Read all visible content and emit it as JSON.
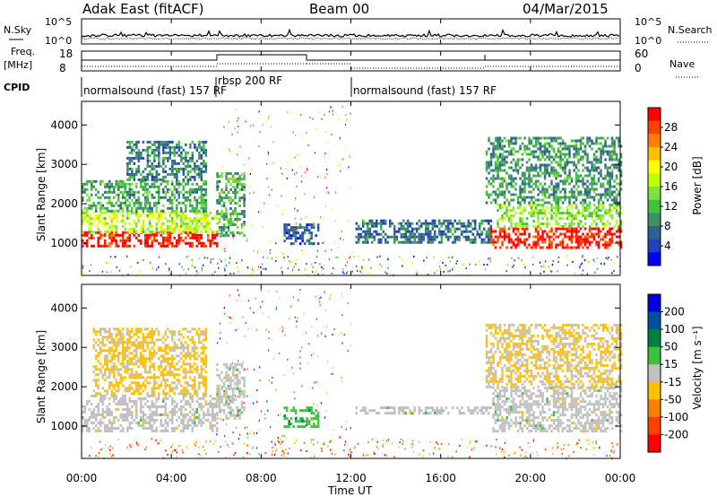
{
  "header": {
    "station": "Adak East (fitACF)",
    "beam": "Beam 00",
    "date": "04/Mar/2015"
  },
  "panel_labels": {
    "nsky": "N.Sky",
    "freq": "Freq.",
    "freq_unit": "[MHz]",
    "cpid": "CPID",
    "nsearch": "N.Search",
    "nave": "Nave",
    "nsky_ticks": [
      "10^5",
      "10^0"
    ],
    "nsearch_ticks": [
      "10^5",
      "10^0"
    ],
    "freq_ticks": [
      "18",
      "8"
    ],
    "nave_ticks": [
      "60",
      "0"
    ]
  },
  "cpid_segments": [
    {
      "label": "normalsound (fast) 157 RF",
      "start_h": 0,
      "end_h": 6
    },
    {
      "label": "rbsp 200 RF",
      "start_h": 6,
      "end_h": 12
    },
    {
      "label": "normalsound (fast) 157 RF",
      "start_h": 12,
      "end_h": 24
    }
  ],
  "power_colorbar": {
    "label": "Power [dB]",
    "ticks": [
      "28",
      "24",
      "20",
      "16",
      "12",
      "8",
      "4"
    ],
    "colors": [
      "#ff0000",
      "#ff4000",
      "#ff7f00",
      "#ffbf00",
      "#ffff00",
      "#bfff00",
      "#80e040",
      "#40c040",
      "#409060",
      "#306090",
      "#2040c0",
      "#0000ff"
    ]
  },
  "velocity_colorbar": {
    "label": "Velocity [m s⁻¹]",
    "ticks": [
      "200",
      "100",
      "50",
      "15",
      "-15",
      "-50",
      "-100",
      "-200"
    ],
    "colors": [
      "#0000dd",
      "#0050a0",
      "#008040",
      "#40c040",
      "#c0c0c0",
      "#ffc000",
      "#ff8000",
      "#ff4000",
      "#ff0000"
    ]
  },
  "axes": {
    "y_label": "Slant Range [km]",
    "y_ticks": [
      "4000",
      "3000",
      "2000",
      "1000"
    ],
    "x_label": "Time UT",
    "x_ticks": [
      "00:00",
      "04:00",
      "08:00",
      "12:00",
      "16:00",
      "20:00",
      "00:00"
    ]
  },
  "chart_data": [
    {
      "type": "heatmap",
      "name": "power",
      "x_range_hours": [
        0,
        24
      ],
      "y_range_km": [
        180,
        4600
      ],
      "value_unit": "dB",
      "color_range": [
        0,
        30
      ],
      "regions": [
        {
          "t0": 0.0,
          "t1": 6.0,
          "r0": 900,
          "r1": 1300,
          "level": 28
        },
        {
          "t0": 0.0,
          "t1": 6.0,
          "r0": 1300,
          "r1": 1800,
          "level": 16
        },
        {
          "t0": 0.0,
          "t1": 5.5,
          "r0": 1800,
          "r1": 2600,
          "level": 10
        },
        {
          "t0": 2.0,
          "t1": 5.5,
          "r0": 2600,
          "r1": 3600,
          "level": 8
        },
        {
          "t0": 6.0,
          "t1": 7.2,
          "r0": 1200,
          "r1": 2800,
          "level": 10
        },
        {
          "t0": 9.0,
          "t1": 10.5,
          "r0": 1000,
          "r1": 1500,
          "level": 6
        },
        {
          "t0": 12.2,
          "t1": 18.2,
          "r0": 1000,
          "r1": 1600,
          "level": 7
        },
        {
          "t0": 18.2,
          "t1": 24.0,
          "r0": 900,
          "r1": 1400,
          "level": 28
        },
        {
          "t0": 18.5,
          "t1": 24.0,
          "r0": 1400,
          "r1": 2000,
          "level": 14
        },
        {
          "t0": 18.0,
          "t1": 24.0,
          "r0": 2000,
          "r1": 3700,
          "level": 9
        }
      ]
    },
    {
      "type": "heatmap",
      "name": "velocity",
      "x_range_hours": [
        0,
        24
      ],
      "y_range_km": [
        180,
        4600
      ],
      "value_unit": "m s-1",
      "color_range": [
        -250,
        250
      ],
      "regions": [
        {
          "t0": 0.0,
          "t1": 6.0,
          "r0": 900,
          "r1": 1800,
          "level": 0
        },
        {
          "t0": 0.5,
          "t1": 5.5,
          "r0": 1800,
          "r1": 3500,
          "level": -40
        },
        {
          "t0": 6.0,
          "t1": 7.2,
          "r0": 1200,
          "r1": 2600,
          "level": 0
        },
        {
          "t0": 9.0,
          "t1": 10.5,
          "r0": 1000,
          "r1": 1500,
          "level": 60
        },
        {
          "t0": 12.2,
          "t1": 18.2,
          "r0": 1300,
          "r1": 1500,
          "level": 0
        },
        {
          "t0": 18.3,
          "t1": 24.0,
          "r0": 900,
          "r1": 2000,
          "level": 0
        },
        {
          "t0": 18.0,
          "t1": 24.0,
          "r0": 2000,
          "r1": 3600,
          "level": -30
        }
      ]
    }
  ]
}
